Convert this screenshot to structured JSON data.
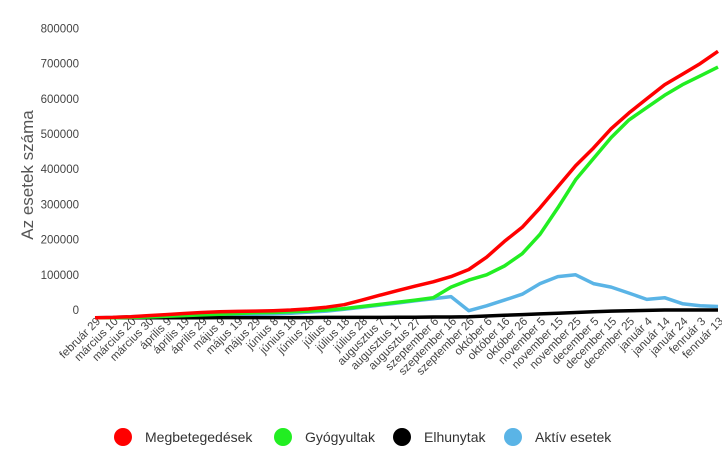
{
  "chart_data": {
    "type": "line",
    "title": "",
    "ylabel": "Az esetek száma",
    "xlabel": "",
    "ylim": [
      -25000,
      800000
    ],
    "yticks": [
      0,
      100000,
      200000,
      300000,
      400000,
      500000,
      600000,
      700000,
      800000
    ],
    "ytick_labels": [
      "0",
      "100000",
      "200000",
      "300000",
      "400000",
      "500000",
      "600000",
      "700000",
      "800000"
    ],
    "grid": false,
    "legend_position": "bottom",
    "categories": [
      "február 29",
      "március 10",
      "március 20",
      "március 30",
      "április 9",
      "április 19",
      "április 29",
      "május 9",
      "május 19",
      "május 29",
      "június 8",
      "június 18",
      "június 28",
      "július 8",
      "július 18",
      "július 28",
      "augusztus 7",
      "augusztus 17",
      "augusztus 27",
      "szeptember 6",
      "szeptember 16",
      "szeptember 26",
      "október 6",
      "október 16",
      "október 26",
      "november 5",
      "november 15",
      "november 25",
      "december 5",
      "december 15",
      "december 25",
      "január 4",
      "január 14",
      "január 24",
      "fenruár 3",
      "fenruár 13"
    ],
    "series": [
      {
        "name": "Megbetegedések",
        "color": "#ff0000",
        "values": [
          -22000,
          -21000,
          -19000,
          -16000,
          -13000,
          -10000,
          -7000,
          -5000,
          -4000,
          -3000,
          -2000,
          0,
          3000,
          8000,
          15000,
          28000,
          42000,
          55000,
          68000,
          80000,
          95000,
          115000,
          150000,
          195000,
          235000,
          290000,
          350000,
          410000,
          460000,
          515000,
          560000,
          600000,
          640000,
          670000,
          700000,
          735000
        ]
      },
      {
        "name": "Gyógyultak",
        "color": "#22ee22",
        "values": [
          -22000,
          -22000,
          -21000,
          -20000,
          -18000,
          -16000,
          -14000,
          -12000,
          -10000,
          -8000,
          -7000,
          -5000,
          -3000,
          0,
          4000,
          10000,
          16000,
          22000,
          28000,
          35000,
          65000,
          85000,
          100000,
          125000,
          160000,
          215000,
          290000,
          370000,
          430000,
          490000,
          540000,
          575000,
          610000,
          640000,
          665000,
          690000
        ]
      },
      {
        "name": "Elhunytak",
        "color": "#000000",
        "values": [
          -22000,
          -22000,
          -22000,
          -22000,
          -22000,
          -22000,
          -22000,
          -21500,
          -21500,
          -21500,
          -21500,
          -21500,
          -21500,
          -21000,
          -21000,
          -21000,
          -21000,
          -20500,
          -20500,
          -20000,
          -20000,
          -19000,
          -17000,
          -15000,
          -13000,
          -11000,
          -9000,
          -7000,
          -5000,
          -3000,
          -2000,
          -1000,
          0,
          0,
          0,
          0
        ]
      },
      {
        "name": "Aktív esetek",
        "color": "#5ab4e6",
        "values": [
          -22000,
          -21000,
          -19000,
          -17000,
          -16000,
          -15000,
          -14000,
          -13000,
          -13000,
          -12000,
          -11000,
          -9000,
          -6000,
          -3000,
          2000,
          8000,
          14000,
          20000,
          26000,
          32000,
          38000,
          -2000,
          12000,
          28000,
          45000,
          75000,
          95000,
          100000,
          75000,
          65000,
          48000,
          30000,
          35000,
          18000,
          12000,
          10000
        ]
      }
    ]
  }
}
